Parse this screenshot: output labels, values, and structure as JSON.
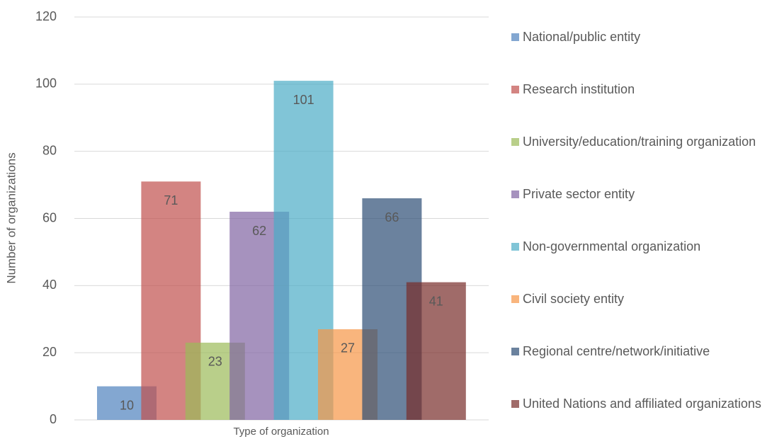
{
  "chart_data": {
    "type": "bar",
    "x_label": "Type of organization",
    "y_label": "Number of organizations",
    "ylim": [
      0,
      120
    ],
    "yticks": [
      0,
      20,
      40,
      60,
      80,
      100,
      120
    ],
    "grid": true,
    "series": [
      {
        "name": "National/public entity",
        "color": "#4f81bd",
        "values": [
          10
        ]
      },
      {
        "name": "Research institution",
        "color": "#c0504d",
        "values": [
          71
        ]
      },
      {
        "name": "University/education/training organization",
        "color": "#9bbb59",
        "values": [
          23
        ]
      },
      {
        "name": "Private sector entity",
        "color": "#8064a2",
        "values": [
          62
        ]
      },
      {
        "name": "Non-governmental organization",
        "color": "#4bacc6",
        "values": [
          101
        ]
      },
      {
        "name": "Civil society entity",
        "color": "#f79646",
        "values": [
          27
        ]
      },
      {
        "name": "Regional centre/network/initiative",
        "color": "#2c4d75",
        "values": [
          66
        ]
      },
      {
        "name": "United Nations and affiliated organizations",
        "color": "#772c2a",
        "values": [
          41
        ]
      }
    ]
  }
}
